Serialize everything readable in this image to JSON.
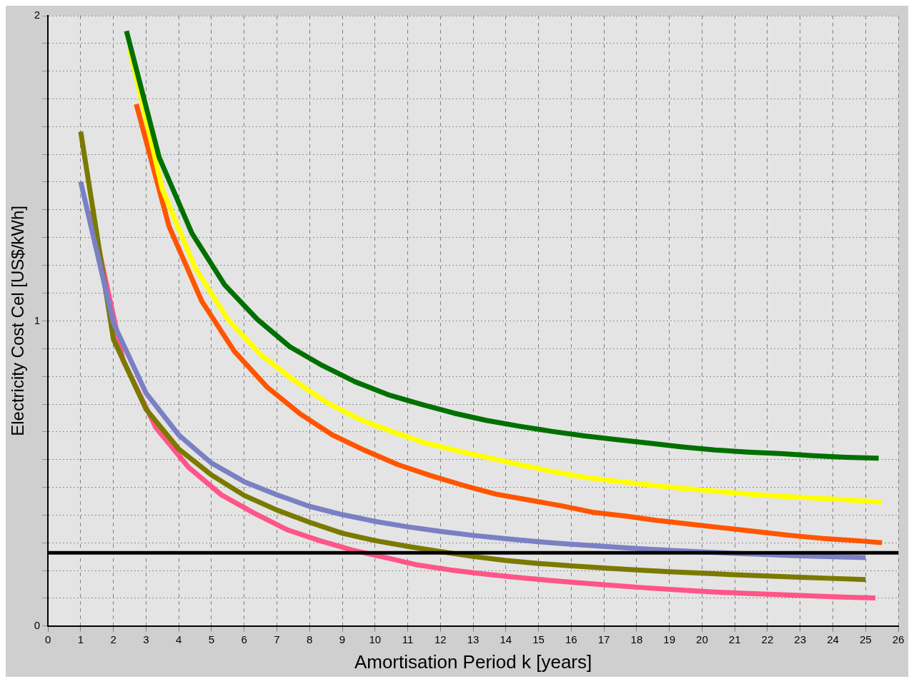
{
  "chart_data": {
    "type": "line",
    "xlabel": "Amortisation Period k [years]",
    "ylabel": "Electricity Cost Cel [US$/kWh]",
    "xlim": [
      0,
      26
    ],
    "xticks": [
      0,
      1,
      2,
      3,
      4,
      5,
      6,
      7,
      8,
      9,
      10,
      11,
      12,
      13,
      14,
      15,
      16,
      17,
      18,
      19,
      20,
      21,
      22,
      23,
      24,
      25,
      26
    ],
    "ylim": [
      0,
      2
    ],
    "yticks": [
      0,
      {
        "value": 0.091,
        "label": null
      },
      {
        "value": 0.182,
        "label": null
      },
      {
        "value": 0.273,
        "label": null
      },
      {
        "value": 0.364,
        "label": null
      },
      {
        "value": 0.455,
        "label": null
      },
      {
        "value": 0.545,
        "label": null
      },
      {
        "value": 0.636,
        "label": null
      },
      {
        "value": 0.727,
        "label": null
      },
      {
        "value": 0.818,
        "label": null
      },
      {
        "value": 0.909,
        "label": null
      },
      1,
      {
        "value": 1.091,
        "label": null
      },
      {
        "value": 1.182,
        "label": null
      },
      {
        "value": 1.273,
        "label": null
      },
      {
        "value": 1.364,
        "label": null
      },
      {
        "value": 1.455,
        "label": null
      },
      {
        "value": 1.545,
        "label": null
      },
      {
        "value": 1.636,
        "label": null
      },
      {
        "value": 1.727,
        "label": null
      },
      {
        "value": 1.818,
        "label": null
      },
      {
        "value": 1.909,
        "label": null
      },
      2
    ],
    "grid": true,
    "line_style": "solid",
    "ref_lines": [
      {
        "axis": "y",
        "value": 0.24,
        "color": "#000000"
      }
    ],
    "series": [
      {
        "color": "#007000",
        "x": [
          2.4,
          3.4,
          4.4,
          5.4,
          6.4,
          7.4,
          8.4,
          9.4,
          10.4,
          11.4,
          12.4,
          13.4,
          14.4,
          15.4,
          16.4,
          17.4,
          18.4,
          19.4,
          20.4,
          21.4,
          22.4,
          23.4,
          24.4,
          25.4
        ],
        "values": [
          1.95,
          1.536,
          1.287,
          1.118,
          1.005,
          0.915,
          0.853,
          0.8,
          0.758,
          0.727,
          0.698,
          0.674,
          0.655,
          0.638,
          0.623,
          0.611,
          0.599,
          0.587,
          0.577,
          0.57,
          0.565,
          0.558,
          0.553,
          0.55
        ]
      },
      {
        "color": "#ffff00",
        "x": [
          2.5,
          3.5,
          4.5,
          5.5,
          6.5,
          7.5,
          8.5,
          9.5,
          10.5,
          11.5,
          12.5,
          13.5,
          14.5,
          15.5,
          16.5,
          17.5,
          18.5,
          19.5,
          20.5,
          21.5,
          22.5,
          23.5,
          24.5,
          25.5
        ],
        "values": [
          1.89,
          1.43,
          1.174,
          1.005,
          0.89,
          0.807,
          0.734,
          0.679,
          0.638,
          0.601,
          0.575,
          0.551,
          0.527,
          0.505,
          0.486,
          0.473,
          0.461,
          0.45,
          0.441,
          0.432,
          0.425,
          0.419,
          0.413,
          0.406
        ]
      },
      {
        "color": "#ff5500",
        "x": [
          2.7,
          3.7,
          4.7,
          5.7,
          6.7,
          7.7,
          8.7,
          9.7,
          10.7,
          11.7,
          12.7,
          13.7,
          14.7,
          15.7,
          16.7,
          17.7,
          18.7,
          19.7,
          20.7,
          21.7,
          22.7,
          23.7,
          24.7,
          25.5
        ],
        "values": [
          1.71,
          1.31,
          1.065,
          0.9,
          0.783,
          0.696,
          0.626,
          0.575,
          0.529,
          0.493,
          0.461,
          0.432,
          0.413,
          0.394,
          0.372,
          0.36,
          0.345,
          0.333,
          0.321,
          0.309,
          0.297,
          0.287,
          0.28,
          0.273
        ]
      },
      {
        "color": "#7b80c4",
        "x": [
          1,
          2,
          3,
          4,
          5,
          6,
          7,
          8,
          9,
          10,
          11,
          12,
          13,
          14,
          15,
          16,
          17,
          18,
          19,
          20,
          21,
          22,
          23,
          24,
          25
        ],
        "values": [
          1.456,
          0.993,
          0.763,
          0.626,
          0.534,
          0.473,
          0.43,
          0.392,
          0.365,
          0.343,
          0.325,
          0.31,
          0.297,
          0.286,
          0.276,
          0.268,
          0.261,
          0.254,
          0.248,
          0.243,
          0.238,
          0.234,
          0.23,
          0.227,
          0.224
        ]
      },
      {
        "color": "#7a7a00",
        "x": [
          1,
          2,
          3,
          4,
          5,
          6,
          7,
          8,
          9,
          10,
          11,
          12,
          13,
          14,
          15,
          16,
          17,
          18,
          19,
          20,
          21,
          22,
          23,
          24,
          25
        ],
        "values": [
          1.62,
          0.94,
          0.71,
          0.58,
          0.495,
          0.428,
          0.38,
          0.34,
          0.304,
          0.28,
          0.261,
          0.244,
          0.228,
          0.215,
          0.205,
          0.197,
          0.19,
          0.184,
          0.178,
          0.173,
          0.168,
          0.164,
          0.16,
          0.156,
          0.152
        ]
      },
      {
        "color": "#ff5588",
        "x": [
          1.3,
          2.3,
          3.3,
          4.3,
          5.3,
          6.3,
          7.3,
          8.3,
          9.3,
          10.3,
          11.3,
          12.3,
          13.3,
          14.3,
          15.3,
          16.3,
          17.3,
          18.3,
          19.3,
          20.3,
          21.3,
          22.3,
          23.3,
          24.3,
          25.3
        ],
        "values": [
          1.36,
          0.87,
          0.65,
          0.52,
          0.43,
          0.37,
          0.316,
          0.28,
          0.249,
          0.225,
          0.2,
          0.184,
          0.171,
          0.16,
          0.15,
          0.141,
          0.133,
          0.125,
          0.118,
          0.112,
          0.107,
          0.103,
          0.099,
          0.095,
          0.092
        ]
      }
    ]
  }
}
